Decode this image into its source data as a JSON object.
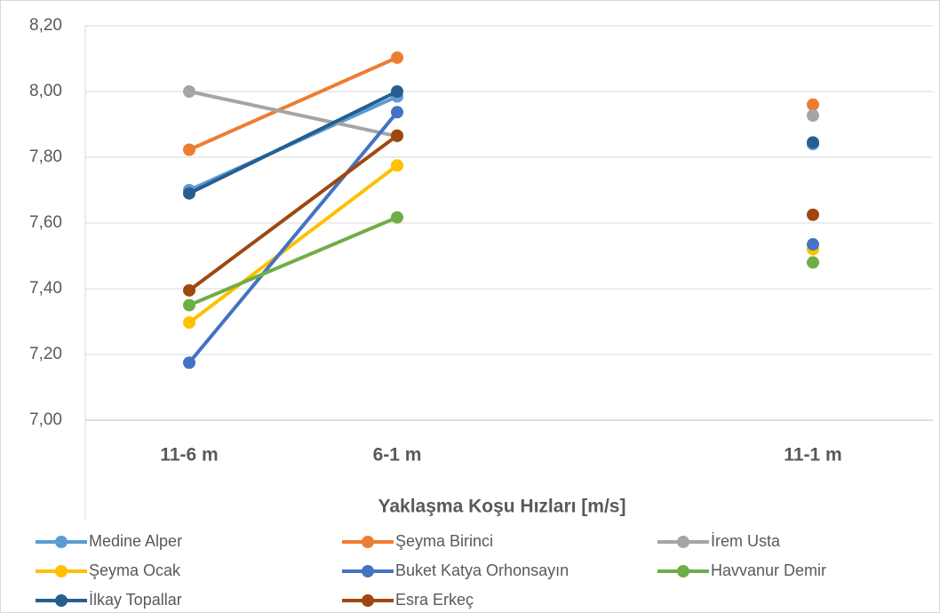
{
  "chart_data": {
    "type": "line",
    "x_label": "Yaklaşma Koşu Hızları [m/s]",
    "categories": [
      "11-6 m",
      "6-1 m",
      null,
      "11-1 m"
    ],
    "series": [
      {
        "name": "Medine Alper",
        "color": "#5b9bd5",
        "values": [
          7.7,
          7.985,
          null,
          7.84
        ]
      },
      {
        "name": "Şeyma Birinci",
        "color": "#ed7d31",
        "values": [
          7.823,
          8.103,
          null,
          7.96
        ]
      },
      {
        "name": "İrem Usta",
        "color": "#a5a5a5",
        "values": [
          8.0,
          7.864,
          null,
          7.927
        ]
      },
      {
        "name": "Şeyma Ocak",
        "color": "#ffc000",
        "values": [
          7.297,
          7.775,
          null,
          7.52
        ]
      },
      {
        "name": "Buket Katya Orhonsayın",
        "color": "#4472c4",
        "values": [
          7.175,
          7.937,
          null,
          7.535
        ]
      },
      {
        "name": "Havvanur Demir",
        "color": "#70ad47",
        "values": [
          7.35,
          7.617,
          null,
          7.48
        ]
      },
      {
        "name": "İlkay Topallar",
        "color": "#255e91",
        "values": [
          7.69,
          8.0,
          null,
          7.845
        ]
      },
      {
        "name": "Esra Erkeç",
        "color": "#9e480e",
        "values": [
          7.395,
          7.866,
          null,
          7.625
        ]
      }
    ],
    "ylim": [
      7.0,
      8.2
    ],
    "yticks": [
      {
        "value": 7.0,
        "label": "7,00"
      },
      {
        "value": 7.2,
        "label": "7,20"
      },
      {
        "value": 7.4,
        "label": "7,40"
      },
      {
        "value": 7.6,
        "label": "7,60"
      },
      {
        "value": 7.8,
        "label": "7,80"
      },
      {
        "value": 8.0,
        "label": "8,00"
      },
      {
        "value": 8.2,
        "label": "8,20"
      }
    ],
    "grid": true,
    "legend": "bottom"
  }
}
